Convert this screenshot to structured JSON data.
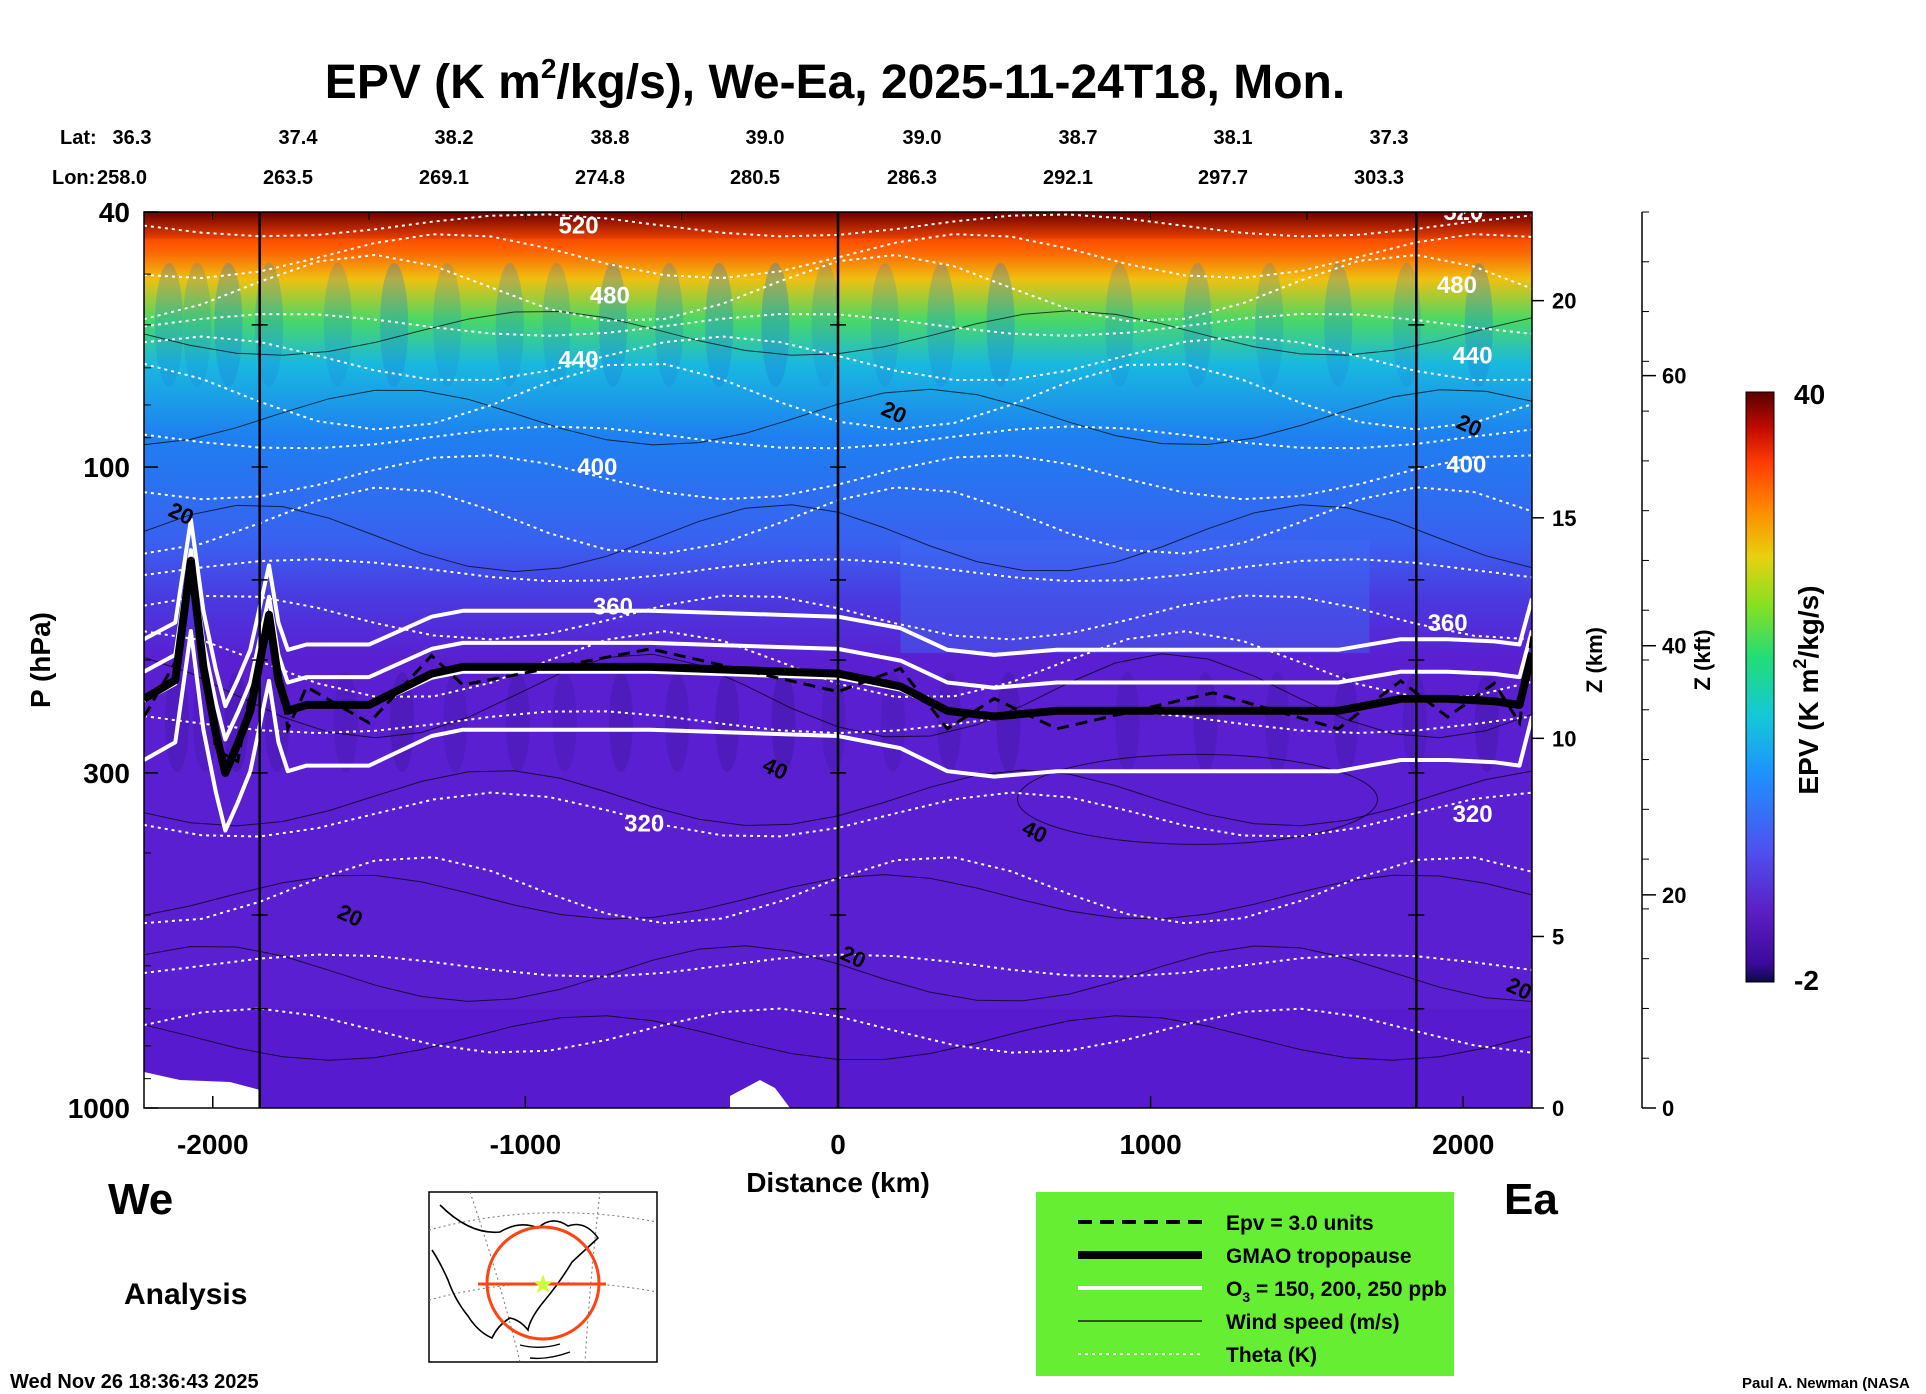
{
  "chart_data": {
    "type": "heatmap",
    "title": {
      "main": "EPV (K m",
      "sup": "2",
      "rest": "/kg/s), We-Ea, 2025-11-24T18, Mon."
    },
    "lat_label": "Lat:",
    "lon_label": "Lon:",
    "lat": [
      "36.3",
      "37.4",
      "38.2",
      "38.8",
      "39.0",
      "39.0",
      "38.7",
      "38.1",
      "37.3"
    ],
    "lon": [
      "258.0",
      "263.5",
      "269.1",
      "274.8",
      "280.5",
      "286.3",
      "292.1",
      "297.7",
      "303.3"
    ],
    "xlabel": "Distance (km)",
    "xlim": [
      -2220,
      2220
    ],
    "xticks": [
      -2000,
      -1000,
      0,
      1000,
      2000
    ],
    "xtick_labels": [
      "-2000",
      "-1000",
      "0",
      "1000",
      "2000"
    ],
    "vertical_lines_km": [
      -1850,
      0,
      1850
    ],
    "ylabel": "P (hPa)",
    "ylim_hPa": [
      1000,
      40
    ],
    "yticks": [
      {
        "p": 40,
        "label": "40"
      },
      {
        "p": 100,
        "label": "100"
      },
      {
        "p": 300,
        "label": "300"
      },
      {
        "p": 1000,
        "label": "1000"
      }
    ],
    "z_km_label": "Z (km)",
    "z_km_ticks": [
      {
        "v": 0,
        "p": 1000,
        "label": "0"
      },
      {
        "v": 5,
        "p": 540,
        "label": "5"
      },
      {
        "v": 10,
        "p": 265,
        "label": "10"
      },
      {
        "v": 15,
        "p": 120,
        "label": "15"
      },
      {
        "v": 20,
        "p": 55,
        "label": "20"
      }
    ],
    "z_kft_label": "Z (kft)",
    "z_kft_ticks": [
      {
        "v": 0,
        "p": 1000,
        "label": "0"
      },
      {
        "v": 20,
        "p": 465,
        "label": "20"
      },
      {
        "v": 40,
        "p": 190,
        "label": "40"
      },
      {
        "v": 60,
        "p": 72,
        "label": "60"
      }
    ],
    "colorbar": {
      "label": "EPV (K m2/kg/s)",
      "min": -2,
      "max": 40,
      "min_label": "-2",
      "max_label": "40"
    },
    "epv_field": {
      "description_levels_hPa": [
        40,
        55,
        75,
        100,
        140,
        170,
        210,
        260,
        400,
        1000
      ],
      "stratosphere_values": [
        40,
        18,
        10,
        6,
        4.5,
        3.5
      ],
      "troposphere_value": 0.5
    },
    "tropopause_hPa": [
      [
        -2220,
        230
      ],
      [
        -2120,
        215
      ],
      [
        -2070,
        140
      ],
      [
        -2030,
        205
      ],
      [
        -1990,
        260
      ],
      [
        -1960,
        300
      ],
      [
        -1920,
        270
      ],
      [
        -1880,
        240
      ],
      [
        -1820,
        170
      ],
      [
        -1790,
        215
      ],
      [
        -1760,
        240
      ],
      [
        -1700,
        235
      ],
      [
        -1500,
        235
      ],
      [
        -1300,
        210
      ],
      [
        -1200,
        205
      ],
      [
        -600,
        205
      ],
      [
        0,
        210
      ],
      [
        200,
        220
      ],
      [
        350,
        240
      ],
      [
        500,
        245
      ],
      [
        700,
        240
      ],
      [
        1200,
        240
      ],
      [
        1600,
        240
      ],
      [
        1800,
        230
      ],
      [
        1950,
        230
      ],
      [
        2100,
        232
      ],
      [
        2180,
        235
      ],
      [
        2220,
        195
      ]
    ],
    "theta_labels": [
      "520",
      "480",
      "440",
      "400",
      "360",
      "320"
    ],
    "theta_label_positions": [
      {
        "label": "520",
        "x": -830,
        "p": 42
      },
      {
        "label": "480",
        "x": -730,
        "p": 54
      },
      {
        "label": "440",
        "x": -830,
        "p": 68
      },
      {
        "label": "400",
        "x": -770,
        "p": 100
      },
      {
        "label": "360",
        "x": -720,
        "p": 165
      },
      {
        "label": "320",
        "x": -620,
        "p": 360
      },
      {
        "label": "520",
        "x": 2000,
        "p": 40
      },
      {
        "label": "480",
        "x": 1980,
        "p": 52
      },
      {
        "label": "440",
        "x": 2030,
        "p": 67
      },
      {
        "label": "400",
        "x": 2010,
        "p": 99
      },
      {
        "label": "360",
        "x": 1950,
        "p": 175
      },
      {
        "label": "320",
        "x": 2030,
        "p": 348
      }
    ],
    "theta_lines_hPa": [
      42,
      47,
      53,
      60,
      68,
      78,
      90,
      104,
      122,
      145,
      172,
      205,
      250,
      350,
      460,
      600,
      760
    ],
    "wind_labels": [
      {
        "label": "20",
        "x": -2100,
        "p": 118
      },
      {
        "label": "20",
        "x": 180,
        "p": 82
      },
      {
        "label": "20",
        "x": 2020,
        "p": 86
      },
      {
        "label": "40",
        "x": -200,
        "p": 295
      },
      {
        "label": "40",
        "x": 630,
        "p": 370
      },
      {
        "label": "20",
        "x": -1560,
        "p": 500
      },
      {
        "label": "20",
        "x": 50,
        "p": 580
      },
      {
        "label": "20",
        "x": 2180,
        "p": 650
      }
    ],
    "legend": [
      {
        "style": "dashed",
        "label": "Epv = 3.0 units"
      },
      {
        "style": "thick",
        "label": "GMAO tropopause"
      },
      {
        "style": "white",
        "label": "O",
        "sub": "3",
        "label_rest": " = 150, 200, 250 ppb"
      },
      {
        "style": "thin",
        "label": "Wind speed (m/s)"
      },
      {
        "style": "dotted",
        "label": "Theta (K)"
      }
    ]
  },
  "labels": {
    "west": "We",
    "east": "Ea",
    "analysis": "Analysis",
    "timestamp": "Wed Nov 26 18:36:43 2025",
    "credit": "Paul A. Newman (NASA"
  },
  "colors": {
    "legend_bg": "#66ee33",
    "map_circle": "#ff4411",
    "map_star": "#ccff33"
  }
}
